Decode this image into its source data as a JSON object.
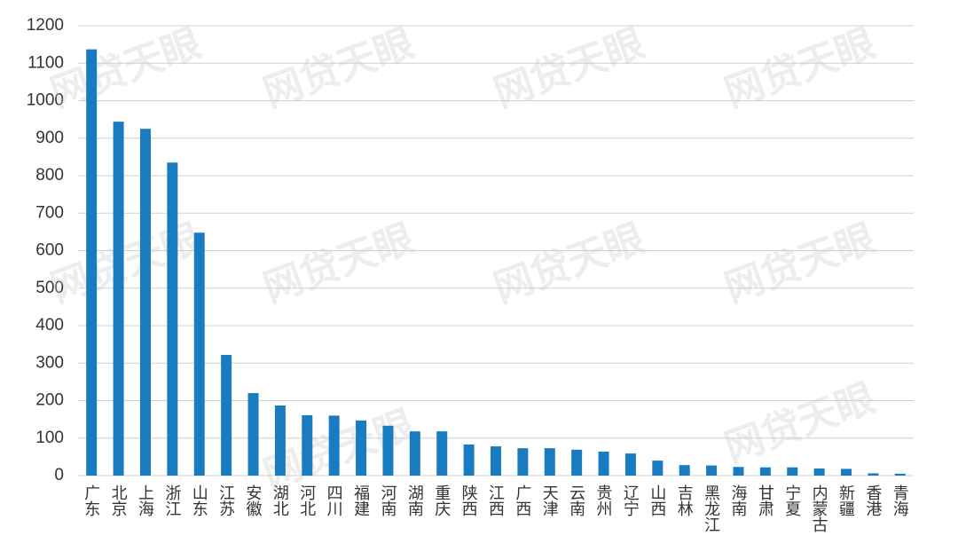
{
  "chart_data": {
    "type": "bar",
    "categories": [
      "广东",
      "北京",
      "上海",
      "浙江",
      "山东",
      "江苏",
      "安徽",
      "湖北",
      "河北",
      "四川",
      "福建",
      "河南",
      "湖南",
      "重庆",
      "陕西",
      "江西",
      "广西",
      "天津",
      "云南",
      "贵州",
      "辽宁",
      "山西",
      "吉林",
      "黑龙江",
      "海南",
      "甘肃",
      "宁夏",
      "内蒙古",
      "新疆",
      "香港",
      "青海"
    ],
    "values": [
      1137,
      944,
      925,
      835,
      648,
      322,
      220,
      187,
      161,
      160,
      147,
      133,
      118,
      118,
      83,
      78,
      73,
      73,
      69,
      64,
      59,
      40,
      28,
      27,
      23,
      22,
      22,
      19,
      18,
      6,
      5
    ],
    "color": "#1a7cc0",
    "ylim": [
      0,
      1200
    ],
    "yticks": [
      0,
      100,
      200,
      300,
      400,
      500,
      600,
      700,
      800,
      900,
      1000,
      1100,
      1200
    ],
    "grid": true,
    "watermark": "网贷天眼"
  }
}
